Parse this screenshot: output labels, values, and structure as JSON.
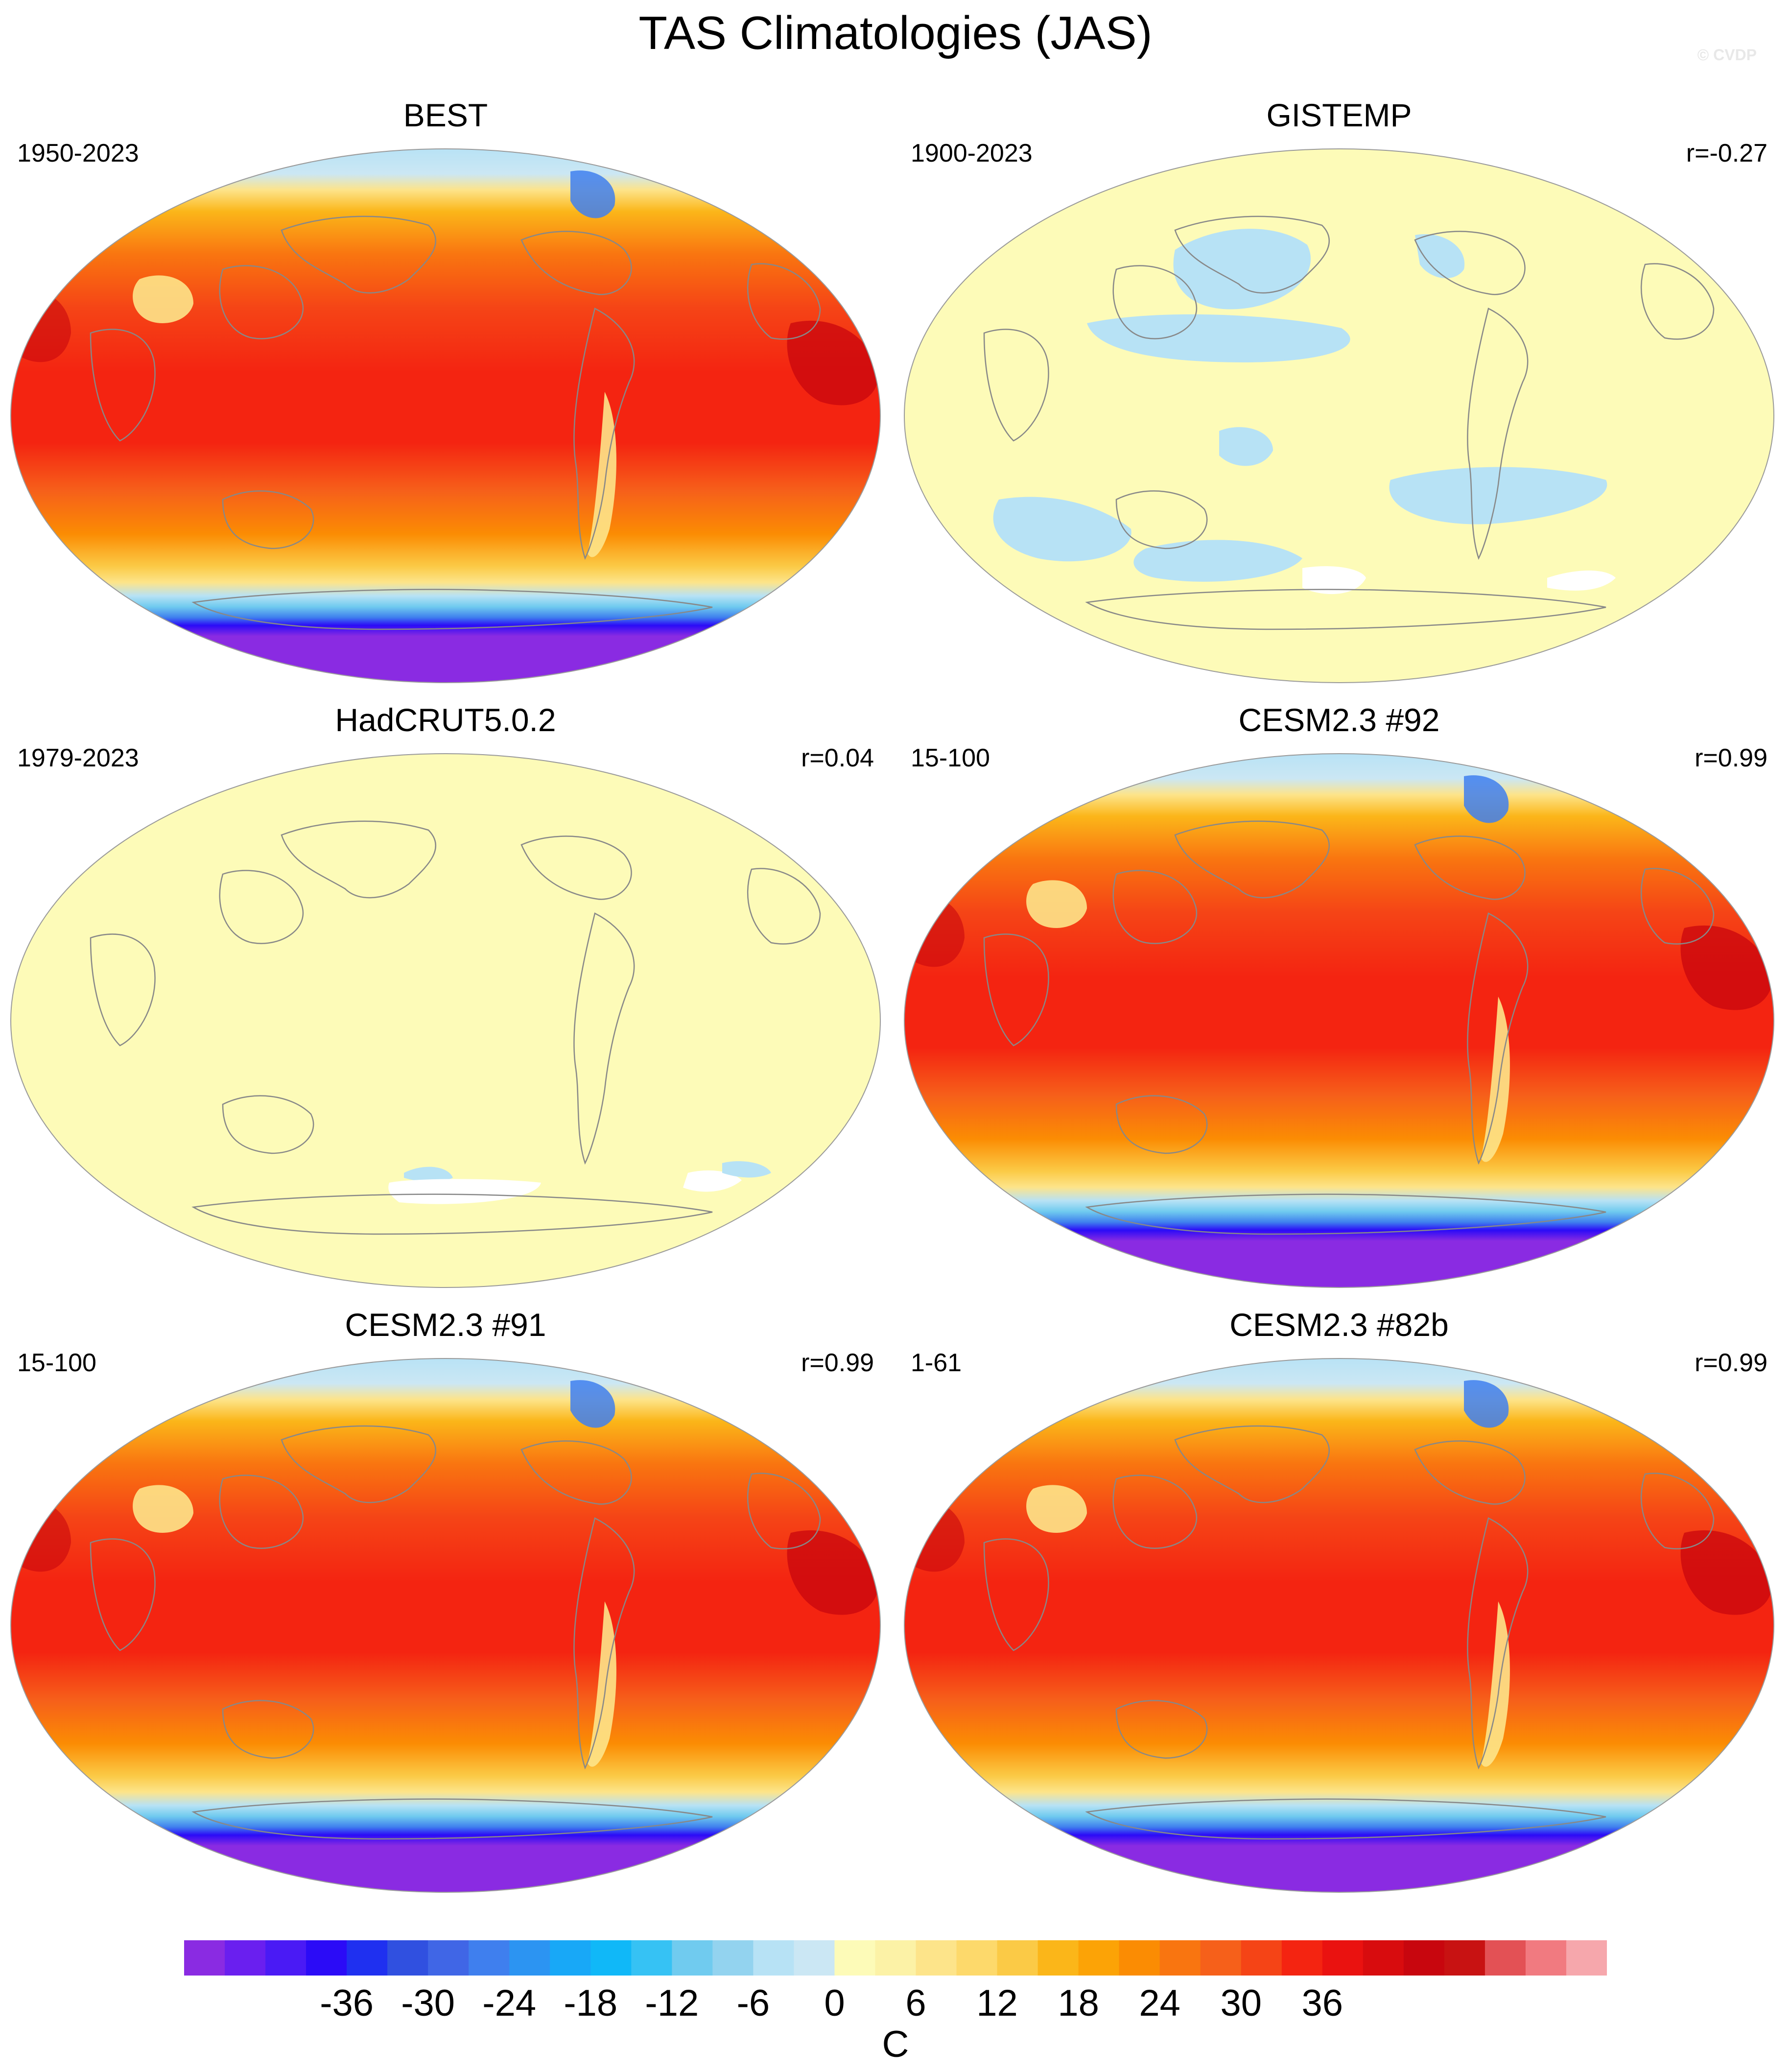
{
  "title": "TAS Climatologies (JAS)",
  "watermark": "© CVDP",
  "panels": [
    {
      "title": "BEST",
      "period": "1950-2023",
      "corr": "",
      "style": "warm"
    },
    {
      "title": "GISTEMP",
      "period": "1900-2023",
      "corr": "r=-0.27",
      "style": "pale-gistemp"
    },
    {
      "title": "HadCRUT5.0.2",
      "period": "1979-2023",
      "corr": "r=0.04",
      "style": "pale-hadcrut"
    },
    {
      "title": "CESM2.3 #92",
      "period": "15-100",
      "corr": "r=0.99",
      "style": "warm"
    },
    {
      "title": "CESM2.3 #91",
      "period": "15-100",
      "corr": "r=0.99",
      "style": "warm"
    },
    {
      "title": "CESM2.3 #82b",
      "period": "1-61",
      "corr": "r=0.99",
      "style": "warm"
    }
  ],
  "colorbar": {
    "unit": "C",
    "tick_labels": [
      "-36",
      "-30",
      "-24",
      "-18",
      "-12",
      "-6",
      "0",
      "6",
      "12",
      "18",
      "24",
      "30",
      "36"
    ],
    "colors": [
      "#8a2be2",
      "#6a1fef",
      "#4a1af5",
      "#2b0bf7",
      "#1f30f0",
      "#3050e0",
      "#4066e6",
      "#3f7fee",
      "#2c94f2",
      "#18a8f7",
      "#10b8f8",
      "#36c2f4",
      "#70cbef",
      "#93d3ef",
      "#b7e2f5",
      "#cbe7f4",
      "#fdfbb8",
      "#fcf2a6",
      "#fde48a",
      "#fdd96b",
      "#fbca46",
      "#fbb619",
      "#fca306",
      "#fb8c03",
      "#f97510",
      "#f6601a",
      "#f54416",
      "#f42411",
      "#ea1210",
      "#d80c0e",
      "#c8060e",
      "#c81212",
      "#e35155",
      "#f17a80",
      "#f6a7ac"
    ]
  }
}
